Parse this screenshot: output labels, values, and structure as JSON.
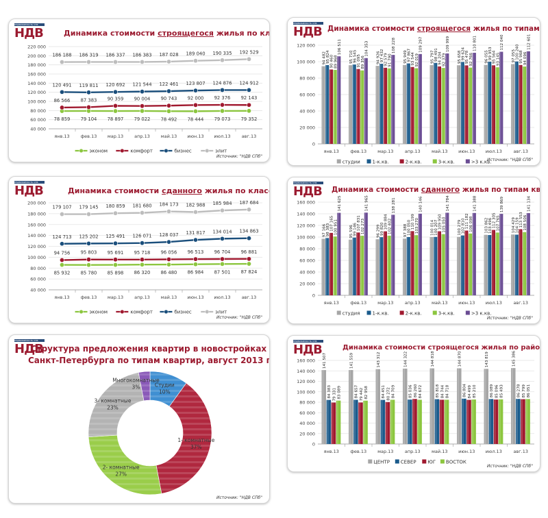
{
  "brand": {
    "logo_text": "НДВ",
    "logo_strip": "НЕДВИЖИМОСТЬ СПБ"
  },
  "source_label": "Источник: \"НДВ СПб\"",
  "chart_data": [
    {
      "id": "built_classes_construction",
      "type": "line",
      "title_pre": "Динамика стоимости ",
      "title_em": "строящегося",
      "title_post": " жилья по классам",
      "categories": [
        "янв.13",
        "фев.13",
        "мар.13",
        "апр.13",
        "май.13",
        "июн.13",
        "июл.13",
        "авг.13"
      ],
      "ylim": [
        40000,
        220000
      ],
      "yticks": [
        40000,
        60000,
        80000,
        100000,
        120000,
        140000,
        160000,
        180000,
        200000,
        220000
      ],
      "ytick_labels": [
        "40 000",
        "60 000",
        "80 000",
        "100 000",
        "120 000",
        "140 000",
        "160 000",
        "180 000",
        "200 000",
        "220 000"
      ],
      "grid": true,
      "legend": "bottom",
      "series": [
        {
          "name": "эконом",
          "color": "#8cc63f",
          "values": [
            78859,
            79104,
            78897,
            79022,
            78492,
            78444,
            79073,
            79352
          ],
          "labels": [
            "78 859",
            "79 104",
            "78 897",
            "79 022",
            "78 492",
            "78 444",
            "79 073",
            "79 352"
          ],
          "label_pos": "below"
        },
        {
          "name": "комфорт",
          "color": "#a0192f",
          "values": [
            86566,
            87383,
            90359,
            90004,
            90743,
            92000,
            92376,
            92143
          ],
          "labels": [
            "86 566",
            "87 383",
            "90 359",
            "90 004",
            "90 743",
            "92 000",
            "92 376",
            "92 143"
          ],
          "label_pos": "above"
        },
        {
          "name": "бизнес",
          "color": "#1b4f7c",
          "values": [
            120491,
            119811,
            120692,
            121544,
            122461,
            123807,
            124876,
            124912
          ],
          "labels": [
            "120 491",
            "119 811",
            "120 692",
            "121 544",
            "122 461",
            "123 807",
            "124 876",
            "124 912"
          ],
          "label_pos": "above"
        },
        {
          "name": "элит",
          "color": "#bdbdbd",
          "values": [
            186188,
            186319,
            186337,
            186383,
            187028,
            189040,
            190335,
            192529
          ],
          "labels": [
            "186 188",
            "186 319",
            "186 337",
            "186 383",
            "187 028",
            "189 040",
            "190 335",
            "192 529"
          ],
          "label_pos": "above"
        }
      ]
    },
    {
      "id": "types_construction",
      "type": "bar",
      "title_pre": "Динамика стоимости ",
      "title_em": "строящегося",
      "title_post": " жилья по типам квартир",
      "categories": [
        "янв.13",
        "фев.13",
        "мар.13",
        "апр.13",
        "май.13",
        "июн.13",
        "июл.13",
        "авг.13"
      ],
      "ylim": [
        0,
        120000
      ],
      "yticks": [
        0,
        20000,
        40000,
        60000,
        80000,
        100000,
        120000
      ],
      "ytick_labels": [
        "0",
        "20 000",
        "40 000",
        "60 000",
        "80 000",
        "100 000",
        "120 000"
      ],
      "grid": true,
      "legend": "bottom",
      "series": [
        {
          "name": "студии",
          "color": "#a6a6a6",
          "values": [
            94482,
            95710,
            94926,
            95949,
            95797,
            95658,
            96055,
            97055
          ],
          "labels": [
            "94 482",
            "95 710",
            "94 926",
            "95 949",
            "95 797",
            "95 658",
            "96 055",
            "97 055"
          ]
        },
        {
          "name": "1-к.кв.",
          "color": "#1b5b8c",
          "values": [
            95824,
            96545,
            97432,
            97867,
            98491,
            99624,
            99953,
            100240
          ],
          "labels": [
            "95 824",
            "96 545",
            "97 432",
            "97 867",
            "98 491",
            "99 624",
            "99 953",
            "100 240"
          ]
        },
        {
          "name": "2-к.кв.",
          "color": "#a0192f",
          "values": [
            90460,
            91095,
            92579,
            93544,
            94204,
            95478,
            95564,
            95968
          ],
          "labels": [
            "90 460",
            "91 095",
            "92 579",
            "93 544",
            "94 204",
            "95 478",
            "95 564",
            "95 968"
          ]
        },
        {
          "name": "3-к.кв.",
          "color": "#8cc63f",
          "values": [
            89968,
            89356,
            91790,
            92019,
            92379,
            92766,
            93145,
            94096
          ],
          "labels": [
            "89 968",
            "89 356",
            "91 790",
            "92 019",
            "92 379",
            "92 766",
            "93 145",
            "94 096"
          ]
        },
        {
          "name": ">3 к.кв.",
          "color": "#6a4c93",
          "values": [
            106511,
            104353,
            108228,
            109297,
            109999,
            110801,
            112040,
            112601
          ],
          "labels": [
            "106 511",
            "104 353",
            "108 228",
            "109 297",
            "109 999",
            "110 801",
            "112 040",
            "112 601"
          ]
        }
      ]
    },
    {
      "id": "built_classes_completed",
      "type": "line",
      "title_pre": "Динамика стоимости ",
      "title_em": "сданного",
      "title_post": " жилья по классам",
      "categories": [
        "янв.13",
        "фев.13",
        "мар.13",
        "апр.13",
        "май.13",
        "июн.13",
        "июл.13",
        "авг.13"
      ],
      "ylim": [
        40000,
        200000
      ],
      "yticks": [
        40000,
        60000,
        80000,
        100000,
        120000,
        140000,
        160000,
        180000,
        200000
      ],
      "ytick_labels": [
        "40 000",
        "60 000",
        "80 000",
        "100 000",
        "120 000",
        "140 000",
        "160 000",
        "180 000",
        "200 000"
      ],
      "grid": true,
      "legend": "bottom",
      "series": [
        {
          "name": "эконом",
          "color": "#8cc63f",
          "values": [
            85932,
            85780,
            85898,
            86320,
            86480,
            86984,
            87501,
            87824
          ],
          "labels": [
            "85 932",
            "85 780",
            "85 898",
            "86 320",
            "86 480",
            "86 984",
            "87 501",
            "87 824"
          ],
          "label_pos": "below"
        },
        {
          "name": "комфорт",
          "color": "#a0192f",
          "values": [
            94756,
            95803,
            95691,
            95718,
            96056,
            96513,
            96704,
            96881
          ],
          "labels": [
            "94 756",
            "95 803",
            "95 691",
            "95 718",
            "96 056",
            "96 513",
            "96 704",
            "96 881"
          ],
          "label_pos": "above"
        },
        {
          "name": "бизнес",
          "color": "#1b4f7c",
          "values": [
            124713,
            125202,
            125491,
            126071,
            128037,
            131817,
            134014,
            134863
          ],
          "labels": [
            "124 713",
            "125 202",
            "125 491",
            "126 071",
            "128 037",
            "131 817",
            "134 014",
            "134 863"
          ],
          "label_pos": "above"
        },
        {
          "name": "элит",
          "color": "#bdbdbd",
          "values": [
            179107,
            179145,
            180859,
            181680,
            184173,
            182988,
            185984,
            187684
          ],
          "labels": [
            "179 107",
            "179 145",
            "180 859",
            "181 680",
            "184 173",
            "182 988",
            "185 984",
            "187 684"
          ],
          "label_pos": "above"
        }
      ]
    },
    {
      "id": "types_completed",
      "type": "bar",
      "title_pre": "Динамика стоимости ",
      "title_em": "сданного",
      "title_post": " жилья по типам квартир",
      "categories": [
        "янв.13",
        "фев.13",
        "мар.13",
        "апр.13",
        "май.13",
        "июн.13",
        "июл.13",
        "авг.13"
      ],
      "ylim": [
        0,
        160000
      ],
      "yticks": [
        0,
        20000,
        40000,
        60000,
        80000,
        100000,
        120000,
        140000,
        160000
      ],
      "ytick_labels": [
        "0",
        "20 000",
        "40 000",
        "60 000",
        "80 000",
        "100 000",
        "120 000",
        "140 000",
        "160 000"
      ],
      "grid": true,
      "legend": "bottom",
      "series": [
        {
          "name": "студия",
          "color": "#a6a6a6",
          "values": [
            97166,
            95596,
            96299,
            97388,
            100014,
            100279,
            103862,
            104429
          ],
          "labels": [
            "97 166",
            "95 596",
            "96 299",
            "97 388",
            "100 014",
            "100 279",
            "103 862",
            "104 429"
          ]
        },
        {
          "name": "1-к.кв.",
          "color": "#1b5b8c",
          "values": [
            98383,
            99146,
            99820,
            100050,
            100207,
            102810,
            103496,
            104159
          ],
          "labels": [
            "98 383",
            "99 146",
            "99 820",
            "100 050",
            "100 207",
            "102 810",
            "103 496",
            "104 159"
          ]
        },
        {
          "name": "2-к.кв.",
          "color": "#a0192f",
          "values": [
            107165,
            107831,
            109884,
            110199,
            109950,
            111182,
            112305,
            113553
          ],
          "labels": [
            "107 165",
            "107 831",
            "109 884",
            "110 199",
            "109 950",
            "111 182",
            "112 305",
            "113 553"
          ]
        },
        {
          "name": "3-к.кв.",
          "color": "#8cc63f",
          "values": [
            100951,
            102273,
            102402,
            103270,
            105050,
            106098,
            107765,
            108506
          ],
          "labels": [
            "100 951",
            "102 273",
            "102 402",
            "103 270",
            "105 050",
            "106 098",
            "107 765",
            "108 506"
          ]
        },
        {
          "name": ">3 к.кв.",
          "color": "#6a4c93",
          "values": [
            141625,
            141965,
            138281,
            140146,
            141784,
            141388,
            139869,
            141134
          ],
          "labels": [
            "141 625",
            "141 965",
            "138 281",
            "140 146",
            "141 784",
            "141 388",
            "139 869",
            "141 134"
          ]
        }
      ]
    },
    {
      "id": "structure_pie",
      "type": "pie",
      "donut": true,
      "title_line1": "Структура предложения квартир в новостройках",
      "title_line2": "Санкт-Петербурга по типам квартир, август 2013 г.",
      "slices": [
        {
          "name": "Студии",
          "value": 10,
          "label": "10%",
          "color": "#3f8fd2"
        },
        {
          "name": "1- комнатные",
          "value": 37,
          "label": "37%",
          "color": "#b0283f"
        },
        {
          "name": "2- комнатные",
          "value": 27,
          "label": "27%",
          "color": "#9acd4a"
        },
        {
          "name": "3- комнатные",
          "value": 23,
          "label": "23%",
          "color": "#b3b3b3"
        },
        {
          "name": "Многокомнатные",
          "value": 3,
          "label": "3%",
          "color": "#8a5ab8"
        }
      ]
    },
    {
      "id": "districts_construction",
      "type": "bar",
      "title_pre": "Динамика стоимости строящегося жилья по районам",
      "title_em": "",
      "title_post": "",
      "categories": [
        "янв.13",
        "фев.13",
        "мар.13",
        "апр.13",
        "май.13",
        "июн.13",
        "июл.13",
        "авг.13"
      ],
      "ylim": [
        0,
        160000
      ],
      "yticks": [
        0,
        20000,
        40000,
        60000,
        80000,
        100000,
        120000,
        140000,
        160000
      ],
      "ytick_labels": [
        "0",
        "20 000",
        "40 000",
        "60 000",
        "80 000",
        "100 000",
        "120 000",
        "140 000",
        "160 000"
      ],
      "grid": true,
      "legend": "bottom",
      "series": [
        {
          "name": "ЦЕНТР",
          "color": "#a6a6a6",
          "values": [
            141507,
            141559,
            143312,
            144322,
            144818,
            144870,
            143819,
            145386
          ],
          "labels": [
            "141 507",
            "141 559",
            "143 312",
            "144 322",
            "144 818",
            "144 870",
            "143 819",
            "145 386"
          ]
        },
        {
          "name": "СЕВЕР",
          "color": "#1b5b8c",
          "values": [
            84383,
            84657,
            84451,
            85036,
            85818,
            86804,
            86089,
            86278
          ],
          "labels": [
            "84 383",
            "84 657",
            "84 451",
            "85 036",
            "85 818",
            "86 804",
            "86 089",
            "86 278"
          ]
        },
        {
          "name": "ЮГ",
          "color": "#a0192f",
          "values": [
            79331,
            79442,
            80272,
            86260,
            84744,
            84499,
            85096,
            85799
          ],
          "labels": [
            "79 331",
            "79 442",
            "80 272",
            "86 260",
            "84 744",
            "84 499",
            "85 096",
            "85 799"
          ]
        },
        {
          "name": "ВОСТОК",
          "color": "#8cc63f",
          "values": [
            83089,
            82958,
            84709,
            84672,
            84718,
            85210,
            85493,
            86051
          ],
          "labels": [
            "83 089",
            "82 958",
            "84 709",
            "84 672",
            "84 718",
            "85 210",
            "85 493",
            "86 051"
          ]
        }
      ]
    }
  ]
}
